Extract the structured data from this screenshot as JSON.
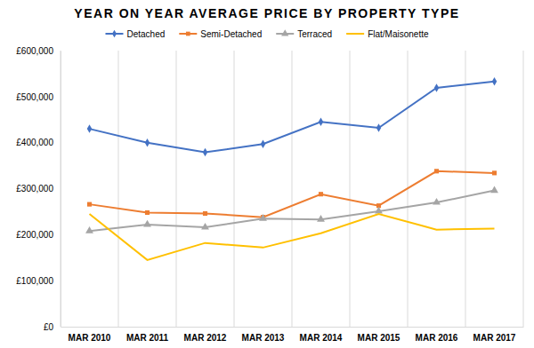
{
  "chart_data": {
    "type": "line",
    "title": "YEAR ON YEAR AVERAGE PRICE BY PROPERTY TYPE",
    "categories": [
      "MAR 2010",
      "MAR 2011",
      "MAR 2012",
      "MAR 2013",
      "MAR 2014",
      "MAR 2015",
      "MAR 2016",
      "MAR 2017"
    ],
    "series": [
      {
        "name": "Detached",
        "color": "#4472c4",
        "marker": "diamond",
        "values": [
          430000,
          400000,
          379000,
          397000,
          445000,
          432000,
          519000,
          533000
        ]
      },
      {
        "name": "Semi-Detached",
        "color": "#ed7d31",
        "marker": "square",
        "values": [
          266000,
          248000,
          246000,
          238000,
          288000,
          263000,
          338000,
          334000
        ]
      },
      {
        "name": "Terraced",
        "color": "#a5a5a5",
        "marker": "triangle",
        "values": [
          208000,
          222000,
          216000,
          235000,
          233000,
          251000,
          270000,
          296000
        ]
      },
      {
        "name": "Flat/Maisonette",
        "color": "#ffc000",
        "marker": "none",
        "values": [
          245000,
          145000,
          182000,
          172000,
          203000,
          245000,
          211000,
          213000
        ]
      }
    ],
    "ylim": [
      0,
      600000
    ],
    "yticks": [
      {
        "value": 0,
        "label": "£0"
      },
      {
        "value": 100000,
        "label": "£100,000"
      },
      {
        "value": 200000,
        "label": "£200,000"
      },
      {
        "value": 300000,
        "label": "£300,000"
      },
      {
        "value": 400000,
        "label": "£400,000"
      },
      {
        "value": 500000,
        "label": "£500,000"
      },
      {
        "value": 600000,
        "label": "£600,000"
      }
    ],
    "grid": true,
    "legend": "top"
  }
}
